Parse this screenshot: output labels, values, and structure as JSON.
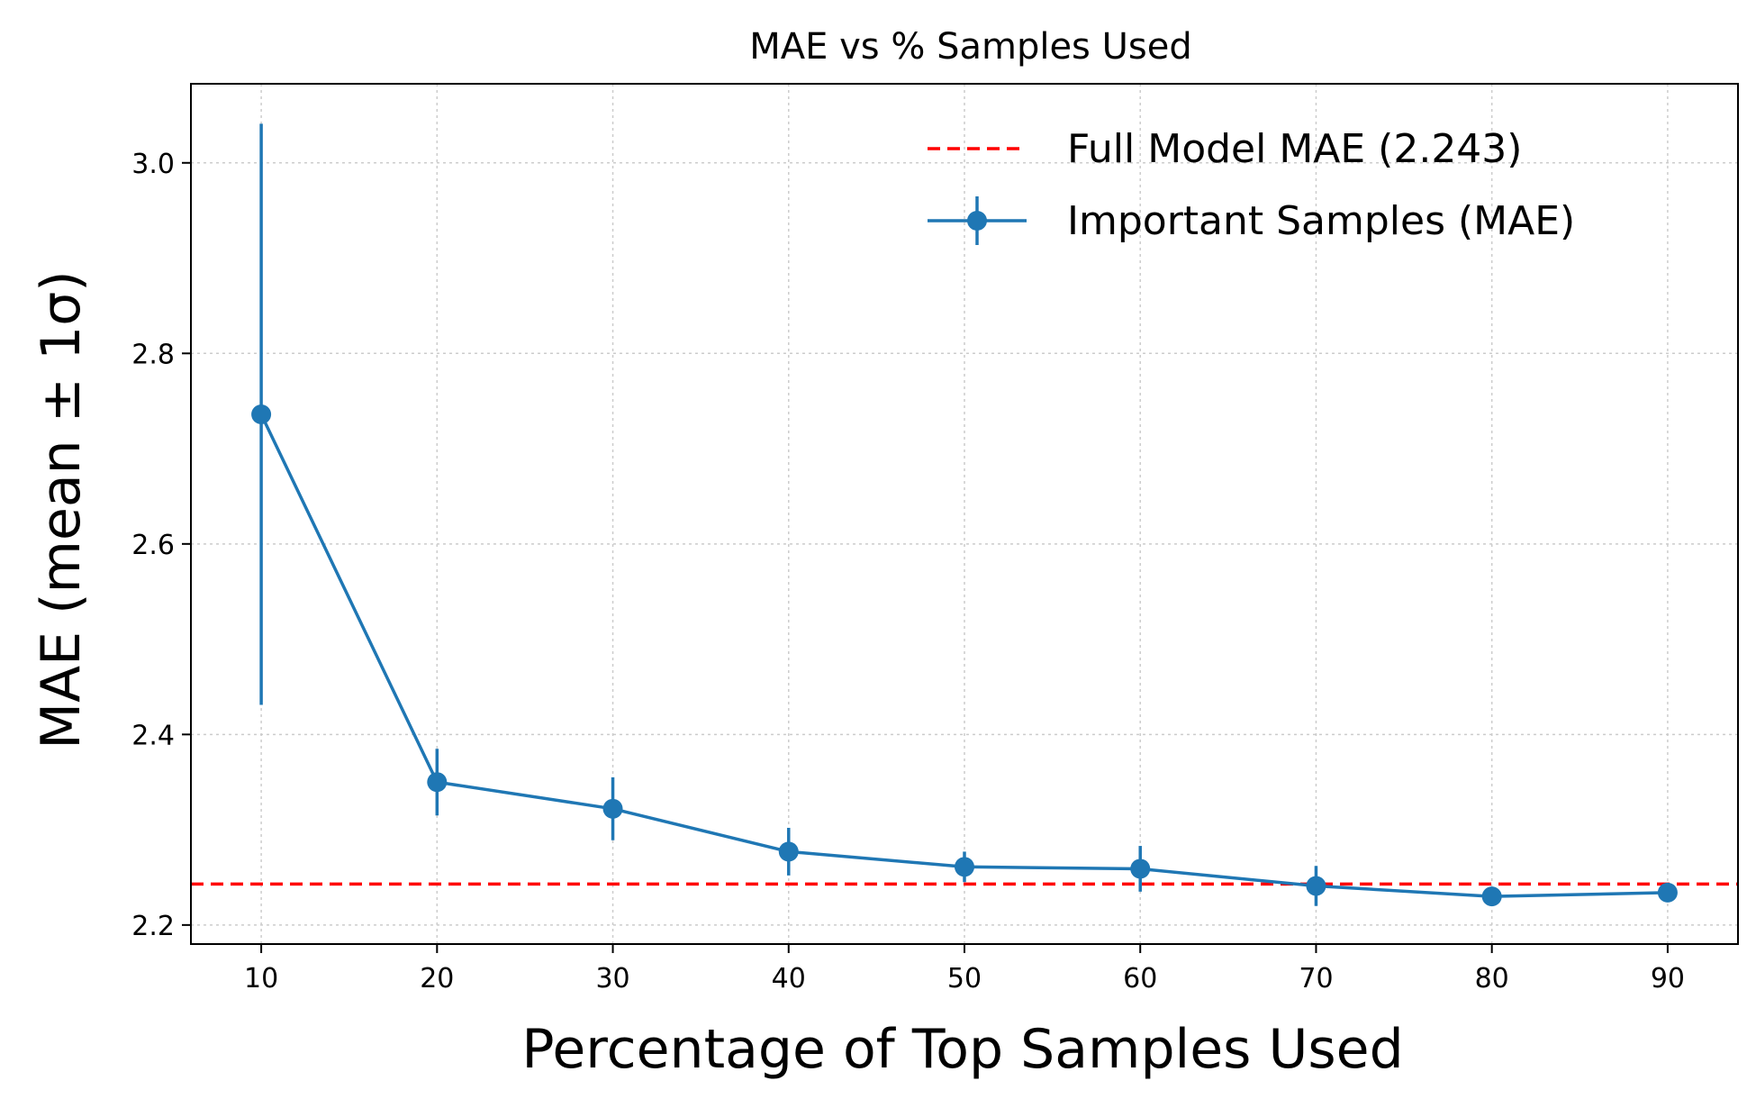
{
  "chart_data": {
    "type": "line",
    "title": "MAE vs % Samples Used",
    "xlabel": "Percentage of Top Samples Used",
    "ylabel": "MAE (mean ± 1σ)",
    "x": [
      10,
      20,
      30,
      40,
      50,
      60,
      70,
      80,
      90
    ],
    "xticks": [
      "10",
      "20",
      "30",
      "40",
      "50",
      "60",
      "70",
      "80",
      "90"
    ],
    "yticks": [
      "2.2",
      "2.4",
      "2.6",
      "2.8",
      "3.0"
    ],
    "xlim": [
      6,
      94
    ],
    "ylim": [
      2.18,
      3.083
    ],
    "grid": true,
    "legend_position": "top-right",
    "series": [
      {
        "name": "Important Samples (MAE)",
        "color": "#1f77b4",
        "values": [
          2.736,
          2.35,
          2.322,
          2.277,
          2.261,
          2.259,
          2.241,
          2.23,
          2.234
        ],
        "errors": [
          0.305,
          0.035,
          0.033,
          0.025,
          0.016,
          0.024,
          0.021,
          0.008,
          0.008
        ]
      }
    ],
    "reference_line": {
      "name": "Full Model MAE (2.243)",
      "value": 2.243,
      "color": "#ff0000",
      "style": "dashed"
    }
  }
}
